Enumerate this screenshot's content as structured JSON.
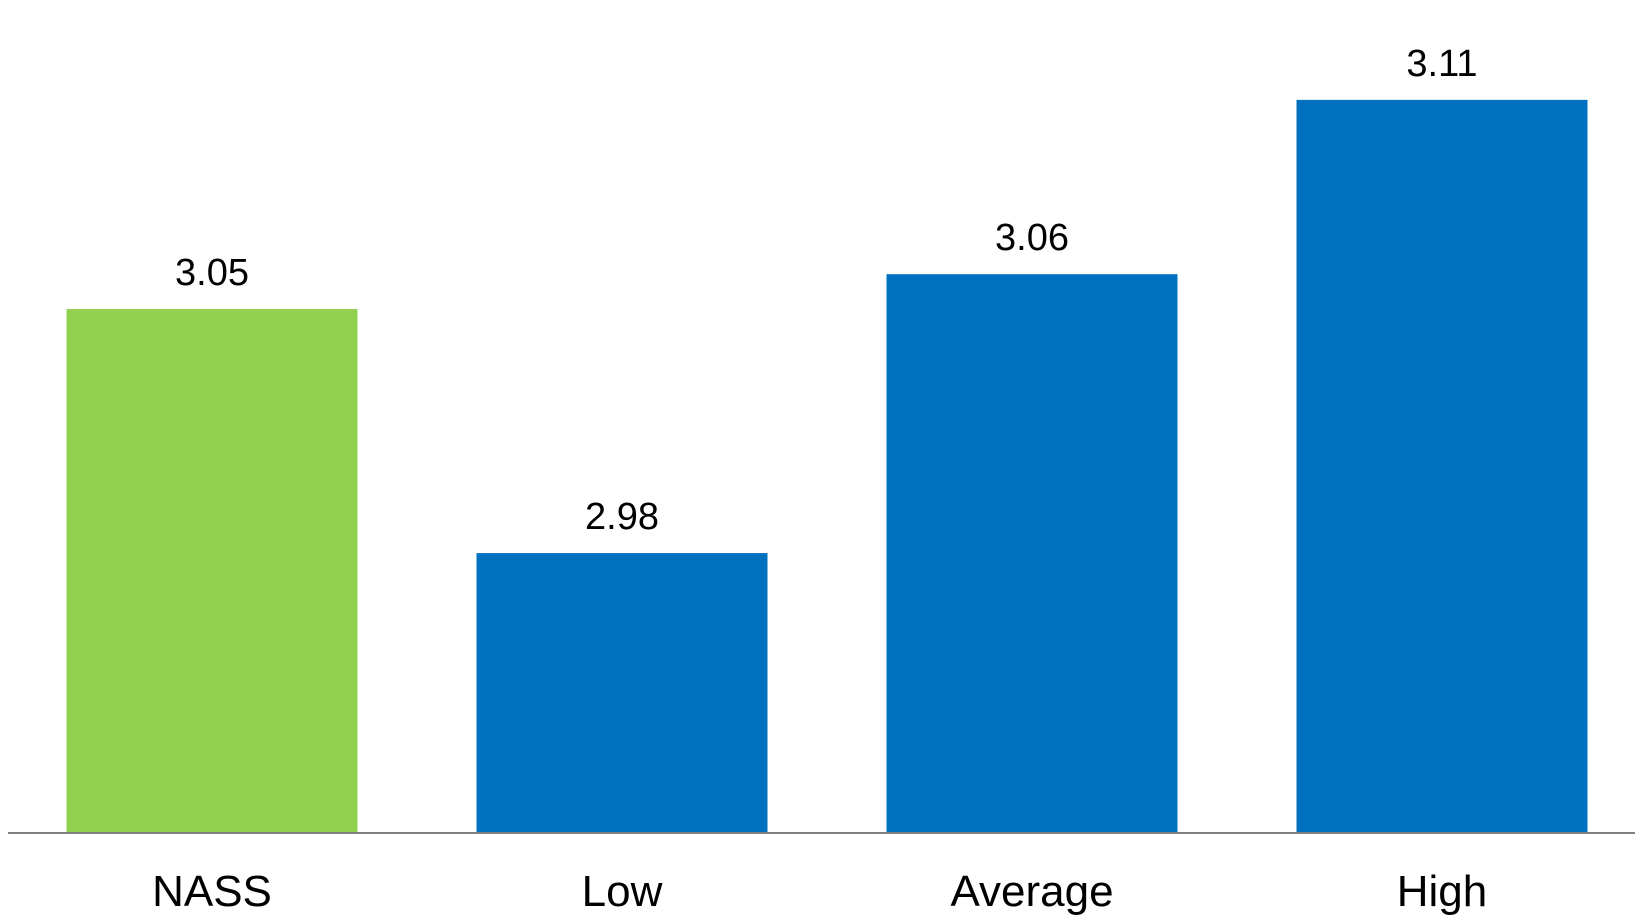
{
  "chart_data": {
    "type": "bar",
    "categories": [
      "NASS",
      "Low",
      "Average",
      "High"
    ],
    "values": [
      3.05,
      2.98,
      3.06,
      3.11
    ],
    "value_labels": [
      "3.05",
      "2.98",
      "3.06",
      "3.11"
    ],
    "colors": [
      "#92D050",
      "#0070C0",
      "#0070C0",
      "#0070C0"
    ],
    "axis_color": "#808080",
    "ylim": [
      2.9,
      3.12
    ],
    "grid": false,
    "legend": "none",
    "title": "",
    "xlabel": "",
    "ylabel": ""
  }
}
